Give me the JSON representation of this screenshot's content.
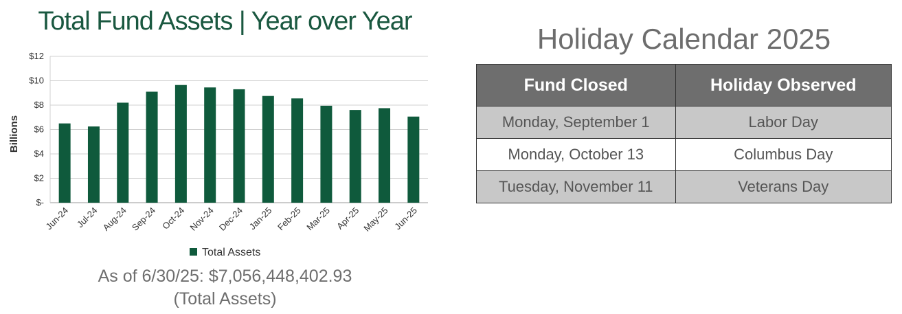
{
  "chart_data": {
    "type": "bar",
    "title": "Total Fund Assets | Year over Year",
    "categories": [
      "Jun-24",
      "Jul-24",
      "Aug-24",
      "Sep-24",
      "Oct-24",
      "Nov-24",
      "Dec-24",
      "Jan-25",
      "Feb-25",
      "Mar-25",
      "Apr-25",
      "May-25",
      "Jun-25"
    ],
    "series": [
      {
        "name": "Total Assets",
        "values": [
          6.5,
          6.25,
          8.2,
          9.1,
          9.65,
          9.45,
          9.3,
          8.75,
          8.55,
          7.95,
          7.6,
          7.75,
          7.06
        ]
      }
    ],
    "ylabel": "Billions",
    "xlabel": "",
    "ylim": [
      0,
      12
    ],
    "y_ticks": [
      0,
      2,
      4,
      6,
      8,
      10,
      12
    ],
    "y_tick_labels": [
      "$-",
      "$2",
      "$4",
      "$6",
      "$8",
      "$10",
      "$12"
    ],
    "grid": true,
    "legend_position": "bottom",
    "bar_color": "#0f5a3c"
  },
  "summary": {
    "line1": "As of 6/30/25: $7,056,448,402.93",
    "line2": "(Total Assets)"
  },
  "calendar": {
    "title": "Holiday Calendar 2025",
    "headers": [
      "Fund Closed",
      "Holiday Observed"
    ],
    "rows": [
      {
        "closed": "Monday, September 1",
        "holiday": "Labor Day"
      },
      {
        "closed": "Monday, October 13",
        "holiday": "Columbus Day"
      },
      {
        "closed": "Tuesday, November 11",
        "holiday": "Veterans Day"
      }
    ]
  },
  "colors": {
    "title_green": "#1a5840",
    "bar_green": "#0f5a3c",
    "header_gray": "#6e6e6e",
    "row_shade": "#c8c8c8"
  }
}
